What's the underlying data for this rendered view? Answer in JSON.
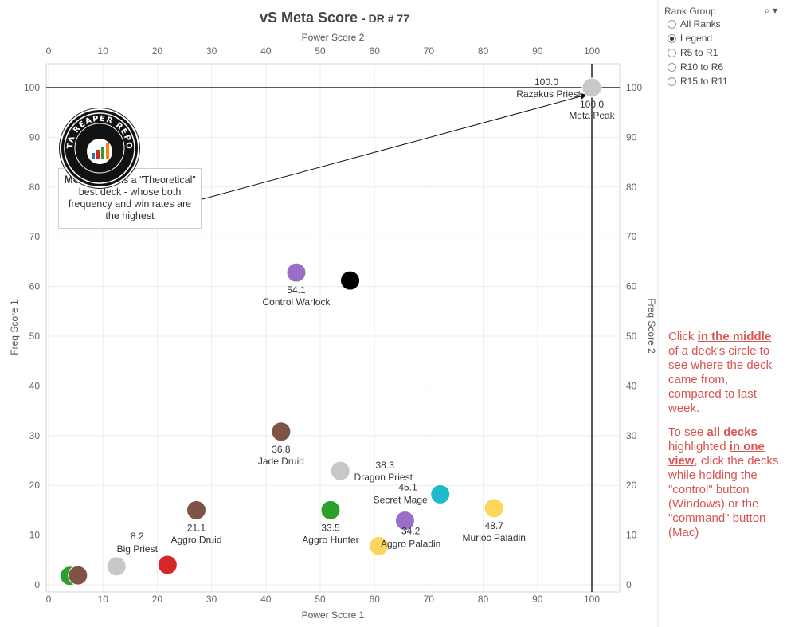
{
  "title": {
    "main": "vS Meta Score",
    "sub": "- DR # 77"
  },
  "rank_filter": {
    "title": "Rank Group",
    "options": [
      {
        "label": "All Ranks",
        "checked": false
      },
      {
        "label": "Legend",
        "checked": true
      },
      {
        "label": "R5 to R1",
        "checked": false
      },
      {
        "label": "R10 to R6",
        "checked": false
      },
      {
        "label": "R15 to R11",
        "checked": false
      }
    ]
  },
  "annotation": {
    "bold": "Meta Peak",
    "rest": " is a \"Theoretical\" best deck - whose both frequency and win rates are the highest"
  },
  "logo": {
    "text": "DATA REAPER REPORT"
  },
  "help": {
    "p1": [
      "Click ",
      "in the middle",
      " of a deck's circle to see where the deck came from, compared to last week."
    ],
    "p2": [
      "To see ",
      "all decks",
      " highlighted ",
      "in one view",
      ", click the decks while holding the \"control\" button (Windows) or the \"command\" button (Mac)"
    ]
  },
  "chart_data": {
    "type": "scatter",
    "title": "vS Meta Score - DR # 77",
    "xlabel": "Power Score 1",
    "x2label": "Power Score 2",
    "ylabel": "Freq Score 1",
    "y2label": "Freq Score 2",
    "xlim": [
      0,
      105
    ],
    "ylim": [
      -1.5,
      101
    ],
    "xticks": [
      0,
      10,
      20,
      30,
      40,
      50,
      60,
      70,
      80,
      90,
      100
    ],
    "yticks": [
      0,
      10,
      20,
      30,
      40,
      50,
      60,
      70,
      80,
      90,
      100
    ],
    "reference_lines": {
      "x": 100,
      "y": 100
    },
    "points": [
      {
        "name": "Meta Peak",
        "score": "100.0",
        "x": 100,
        "y": 100,
        "color": "#c8c8c8",
        "labels": [
          {
            "text": "100.0",
            "pos": "above-left"
          },
          {
            "text": "Razakus Priest",
            "pos": "above-left2"
          },
          {
            "text": "100.0",
            "pos": "below"
          },
          {
            "text": "Meta Peak",
            "pos": "below2"
          }
        ]
      },
      {
        "name": "Control Warlock",
        "score": "54.1",
        "x": 45.6,
        "y": 62.8,
        "color": "#9b6ec8",
        "labels": [
          {
            "text": "54.1",
            "pos": "below"
          },
          {
            "text": "Control Warlock",
            "pos": "below2"
          }
        ]
      },
      {
        "name": "",
        "x": 55.5,
        "y": 61.2,
        "color": "#000000",
        "labels": []
      },
      {
        "name": "Jade Druid",
        "score": "36.8",
        "x": 42.8,
        "y": 30.8,
        "color": "#7f5446",
        "labels": [
          {
            "text": "36.8",
            "pos": "below"
          },
          {
            "text": "Jade Druid",
            "pos": "below2"
          }
        ]
      },
      {
        "name": "Dragon Priest",
        "score": "38.3",
        "x": 53.7,
        "y": 22.9,
        "color": "#c8c8c8",
        "labels": [
          {
            "text": "38.3",
            "pos": "above-right"
          },
          {
            "text": "Dragon Priest",
            "pos": "right"
          }
        ]
      },
      {
        "name": "Secret Mage",
        "score": "45.1",
        "x": 72.1,
        "y": 18.2,
        "color": "#1fb8cc",
        "labels": [
          {
            "text": "45.1",
            "pos": "above-left"
          },
          {
            "text": "Secret Mage",
            "pos": "left"
          }
        ]
      },
      {
        "name": "Murloc Paladin",
        "score": "48.7",
        "x": 82.0,
        "y": 15.4,
        "color": "#fcd75e",
        "labels": [
          {
            "text": "48.7",
            "pos": "below"
          },
          {
            "text": "Murloc Paladin",
            "pos": "below2"
          }
        ]
      },
      {
        "name": "Aggro Paladin",
        "score": "34.2",
        "x": 65.6,
        "y": 12.9,
        "color": "#9b6ec8",
        "labels": []
      },
      {
        "name": "",
        "x": 60.8,
        "y": 7.8,
        "color": "#fcd75e",
        "labels": [
          {
            "text": "34.2",
            "pos": "custom",
            "dx": 40,
            "dy": -15
          },
          {
            "text": "Aggro Paladin",
            "pos": "custom",
            "dx": 40,
            "dy": 1
          }
        ]
      },
      {
        "name": "Aggro Hunter",
        "score": "33.5",
        "x": 51.9,
        "y": 15.0,
        "color": "#2ca02c",
        "labels": [
          {
            "text": "33.5",
            "pos": "below"
          },
          {
            "text": "Aggro Hunter",
            "pos": "below2"
          }
        ]
      },
      {
        "name": "Aggro Druid",
        "score": "21.1",
        "x": 27.2,
        "y": 15.0,
        "color": "#7f5446",
        "labels": [
          {
            "text": "21.1",
            "pos": "below"
          },
          {
            "text": "Aggro Druid",
            "pos": "below2"
          }
        ]
      },
      {
        "name": "Big Priest",
        "score": "8.2",
        "x": 12.5,
        "y": 3.7,
        "color": "#c8c8c8",
        "labels": [
          {
            "text": "8.2",
            "pos": "custom",
            "dx": 26,
            "dy": -34
          },
          {
            "text": "Big Priest",
            "pos": "custom",
            "dx": 26,
            "dy": -18
          }
        ]
      },
      {
        "name": "",
        "x": 21.9,
        "y": 4.0,
        "color": "#d62728",
        "labels": []
      },
      {
        "name": "",
        "x": 3.9,
        "y": 1.8,
        "color": "#2ca02c",
        "labels": []
      },
      {
        "name": "",
        "x": 5.4,
        "y": 1.9,
        "color": "#7f5446",
        "labels": []
      }
    ]
  }
}
